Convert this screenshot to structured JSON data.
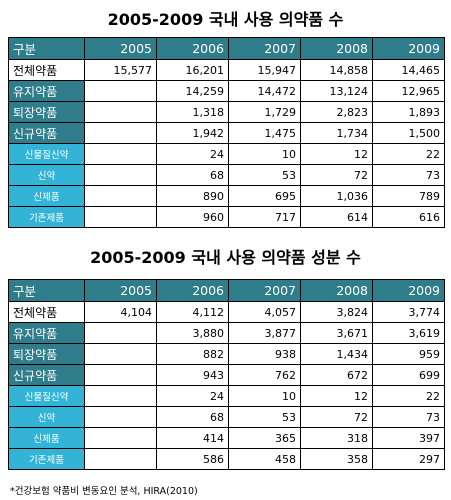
{
  "table1": {
    "title": "2005-2009 국내 사용 의약품 수",
    "header": [
      "구분",
      "2005",
      "2006",
      "2007",
      "2008",
      "2009"
    ],
    "rows": [
      {
        "label": "전체약품",
        "style": "main",
        "values": [
          "15,577",
          "16,201",
          "15,947",
          "14,858",
          "14,465"
        ]
      },
      {
        "label": "유지약품",
        "style": "hl",
        "values": [
          "",
          "14,259",
          "14,472",
          "13,124",
          "12,965"
        ]
      },
      {
        "label": "퇴장약품",
        "style": "hl",
        "values": [
          "",
          "1,318",
          "1,729",
          "2,823",
          "1,893"
        ]
      },
      {
        "label": "신규약품",
        "style": "hl",
        "values": [
          "",
          "1,942",
          "1,475",
          "1,734",
          "1,500"
        ]
      },
      {
        "label": "신물질신약",
        "style": "sub",
        "values": [
          "",
          "24",
          "10",
          "12",
          "22"
        ]
      },
      {
        "label": "신약",
        "style": "sub",
        "values": [
          "",
          "68",
          "53",
          "72",
          "73"
        ]
      },
      {
        "label": "신제품",
        "style": "sub",
        "values": [
          "",
          "890",
          "695",
          "1,036",
          "789"
        ]
      },
      {
        "label": "기존제품",
        "style": "sub",
        "values": [
          "",
          "960",
          "717",
          "614",
          "616"
        ]
      }
    ]
  },
  "table2": {
    "title": "2005-2009 국내 사용 의약품 성분 수",
    "header": [
      "구분",
      "2005",
      "2006",
      "2007",
      "2008",
      "2009"
    ],
    "rows": [
      {
        "label": "전체약품",
        "style": "main",
        "values": [
          "4,104",
          "4,112",
          "4,057",
          "3,824",
          "3,774"
        ]
      },
      {
        "label": "유지약품",
        "style": "hl",
        "values": [
          "",
          "3,880",
          "3,877",
          "3,671",
          "3,619"
        ]
      },
      {
        "label": "퇴장약품",
        "style": "hl",
        "values": [
          "",
          "882",
          "938",
          "1,434",
          "959"
        ]
      },
      {
        "label": "신규약품",
        "style": "hl",
        "values": [
          "",
          "943",
          "762",
          "672",
          "699"
        ]
      },
      {
        "label": "신물질신약",
        "style": "sub",
        "values": [
          "",
          "24",
          "10",
          "12",
          "22"
        ]
      },
      {
        "label": "신약",
        "style": "sub",
        "values": [
          "",
          "68",
          "53",
          "72",
          "73"
        ]
      },
      {
        "label": "신제품",
        "style": "sub",
        "values": [
          "",
          "414",
          "365",
          "318",
          "397"
        ]
      },
      {
        "label": "기존제품",
        "style": "sub",
        "values": [
          "",
          "586",
          "458",
          "358",
          "297"
        ]
      }
    ]
  },
  "footnote": "*건강보험 약품비 변동요인 분석, HIRA(2010)",
  "colors": {
    "header_bg": "#2f7c8b",
    "sub_label_bg": "#33b4d6",
    "header_text": "#ffffff"
  }
}
